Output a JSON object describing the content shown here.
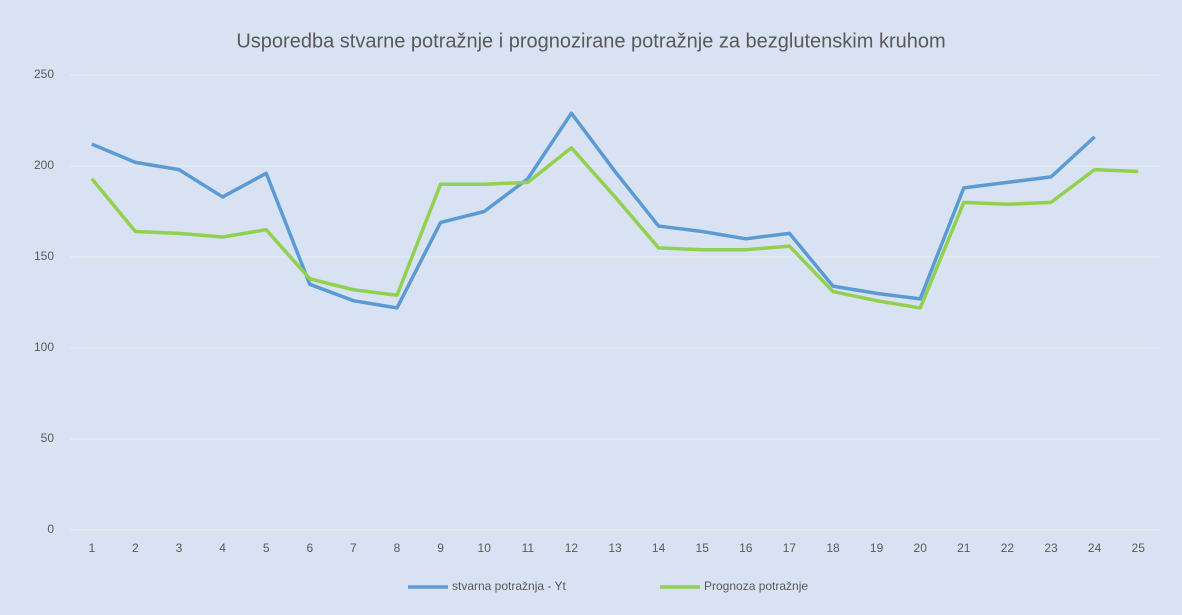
{
  "chart_data": {
    "type": "line",
    "title": "Usporedba stvarne potražnje i prognozirane potražnje za bezglutenskim kruhom",
    "categories": [
      "1",
      "2",
      "3",
      "4",
      "5",
      "6",
      "7",
      "8",
      "9",
      "10",
      "11",
      "12",
      "13",
      "14",
      "15",
      "16",
      "17",
      "18",
      "19",
      "20",
      "21",
      "22",
      "23",
      "24",
      "25"
    ],
    "series": [
      {
        "name": "stvarna potražnja - Yt",
        "color": "#5b9bd5",
        "values": [
          212,
          202,
          198,
          183,
          196,
          135,
          126,
          122,
          169,
          175,
          193,
          229,
          197,
          167,
          164,
          160,
          163,
          134,
          130,
          127,
          188,
          191,
          194,
          216,
          null
        ]
      },
      {
        "name": "Prognoza potražnje",
        "color": "#92d050",
        "values": [
          193,
          164,
          163,
          161,
          165,
          138,
          132,
          129,
          190,
          190,
          191,
          210,
          183,
          155,
          154,
          154,
          156,
          131,
          126,
          122,
          180,
          179,
          180,
          198,
          197
        ]
      }
    ],
    "ylim": [
      0,
      250
    ],
    "yticks": [
      0,
      50,
      100,
      150,
      200,
      250
    ],
    "grid": true,
    "legend": "bottom"
  }
}
